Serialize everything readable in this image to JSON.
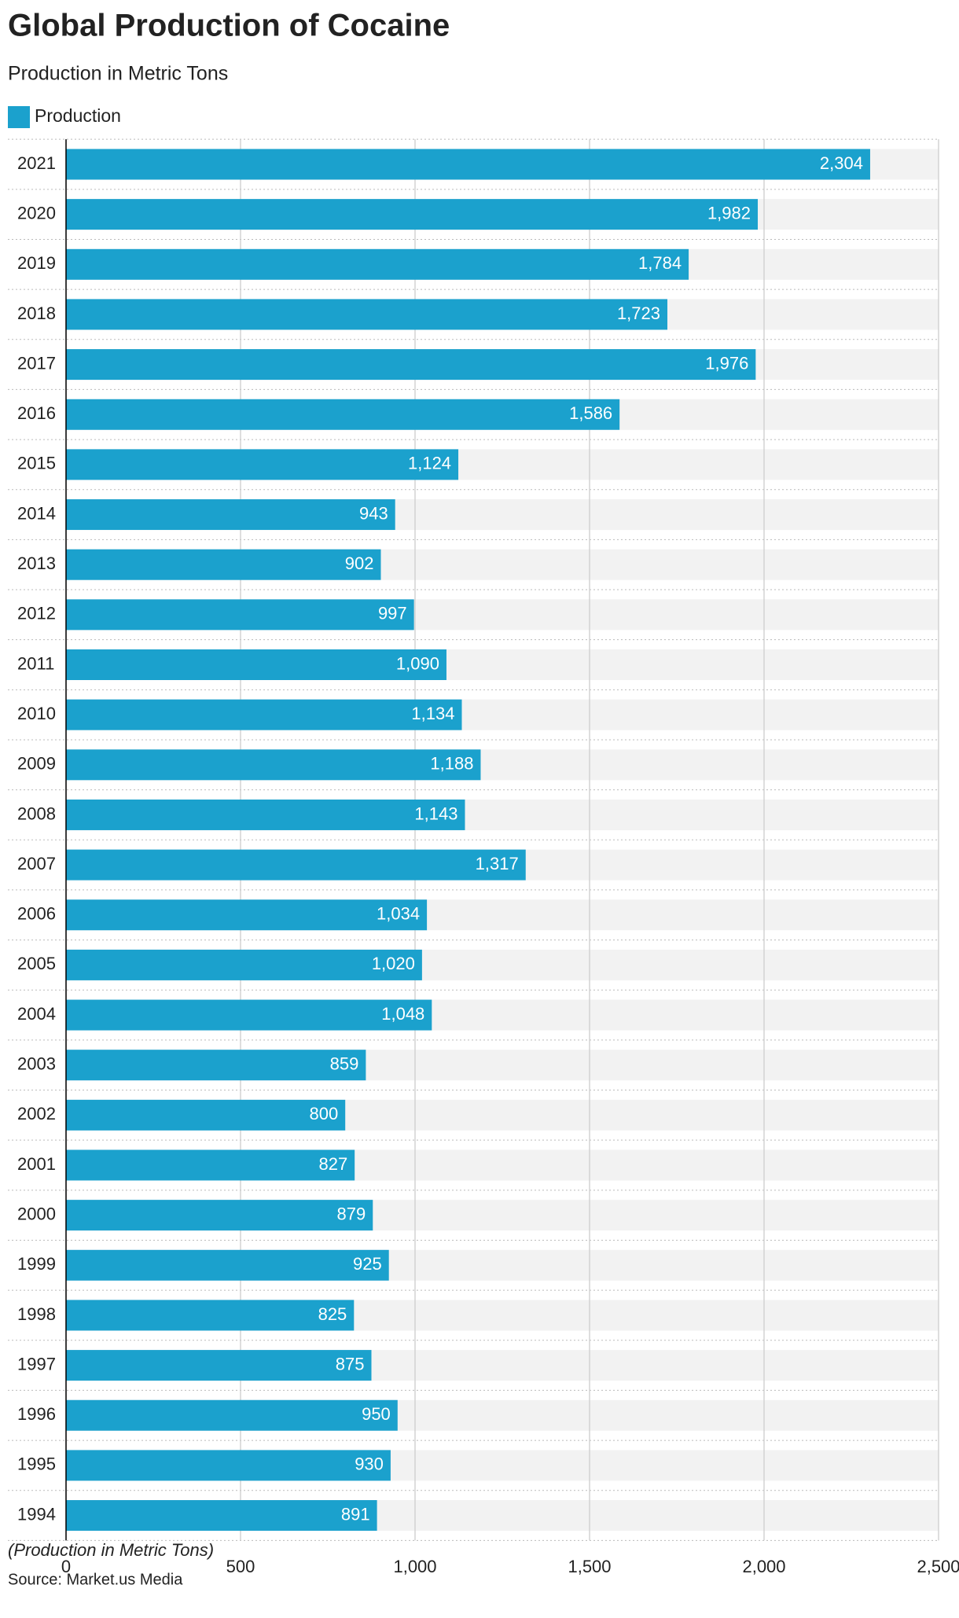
{
  "chart_data": {
    "type": "bar",
    "orientation": "horizontal",
    "title": "Global Production of Cocaine",
    "subtitle": "Production in Metric Tons",
    "note": "(Production in Metric Tons)",
    "source": "Source: Market.us Media",
    "categories": [
      "2021",
      "2020",
      "2019",
      "2018",
      "2017",
      "2016",
      "2015",
      "2014",
      "2013",
      "2012",
      "2011",
      "2010",
      "2009",
      "2008",
      "2007",
      "2006",
      "2005",
      "2004",
      "2003",
      "2002",
      "2001",
      "2000",
      "1999",
      "1998",
      "1997",
      "1996",
      "1995",
      "1994"
    ],
    "series": [
      {
        "name": "Production",
        "color": "#1ba1cd",
        "values": [
          2304,
          1982,
          1784,
          1723,
          1976,
          1586,
          1124,
          943,
          902,
          997,
          1090,
          1134,
          1188,
          1143,
          1317,
          1034,
          1020,
          1048,
          859,
          800,
          827,
          879,
          925,
          825,
          875,
          950,
          930,
          891
        ],
        "value_labels": [
          "2,304",
          "1,982",
          "1,784",
          "1,723",
          "1,976",
          "1,586",
          "1,124",
          "943",
          "902",
          "997",
          "1,090",
          "1,134",
          "1,188",
          "1,143",
          "1,317",
          "1,034",
          "1,020",
          "1,048",
          "859",
          "800",
          "827",
          "879",
          "925",
          "825",
          "875",
          "950",
          "930",
          "891"
        ]
      }
    ],
    "xlim": [
      0,
      2500
    ],
    "xticks": [
      0,
      500,
      {
        "value": 1000,
        "label": "1,000"
      },
      {
        "value": 1500,
        "label": "1,500"
      },
      {
        "value": 2000,
        "label": "2,000"
      },
      {
        "value": 2500,
        "label": "2,500"
      }
    ],
    "grid": true
  }
}
